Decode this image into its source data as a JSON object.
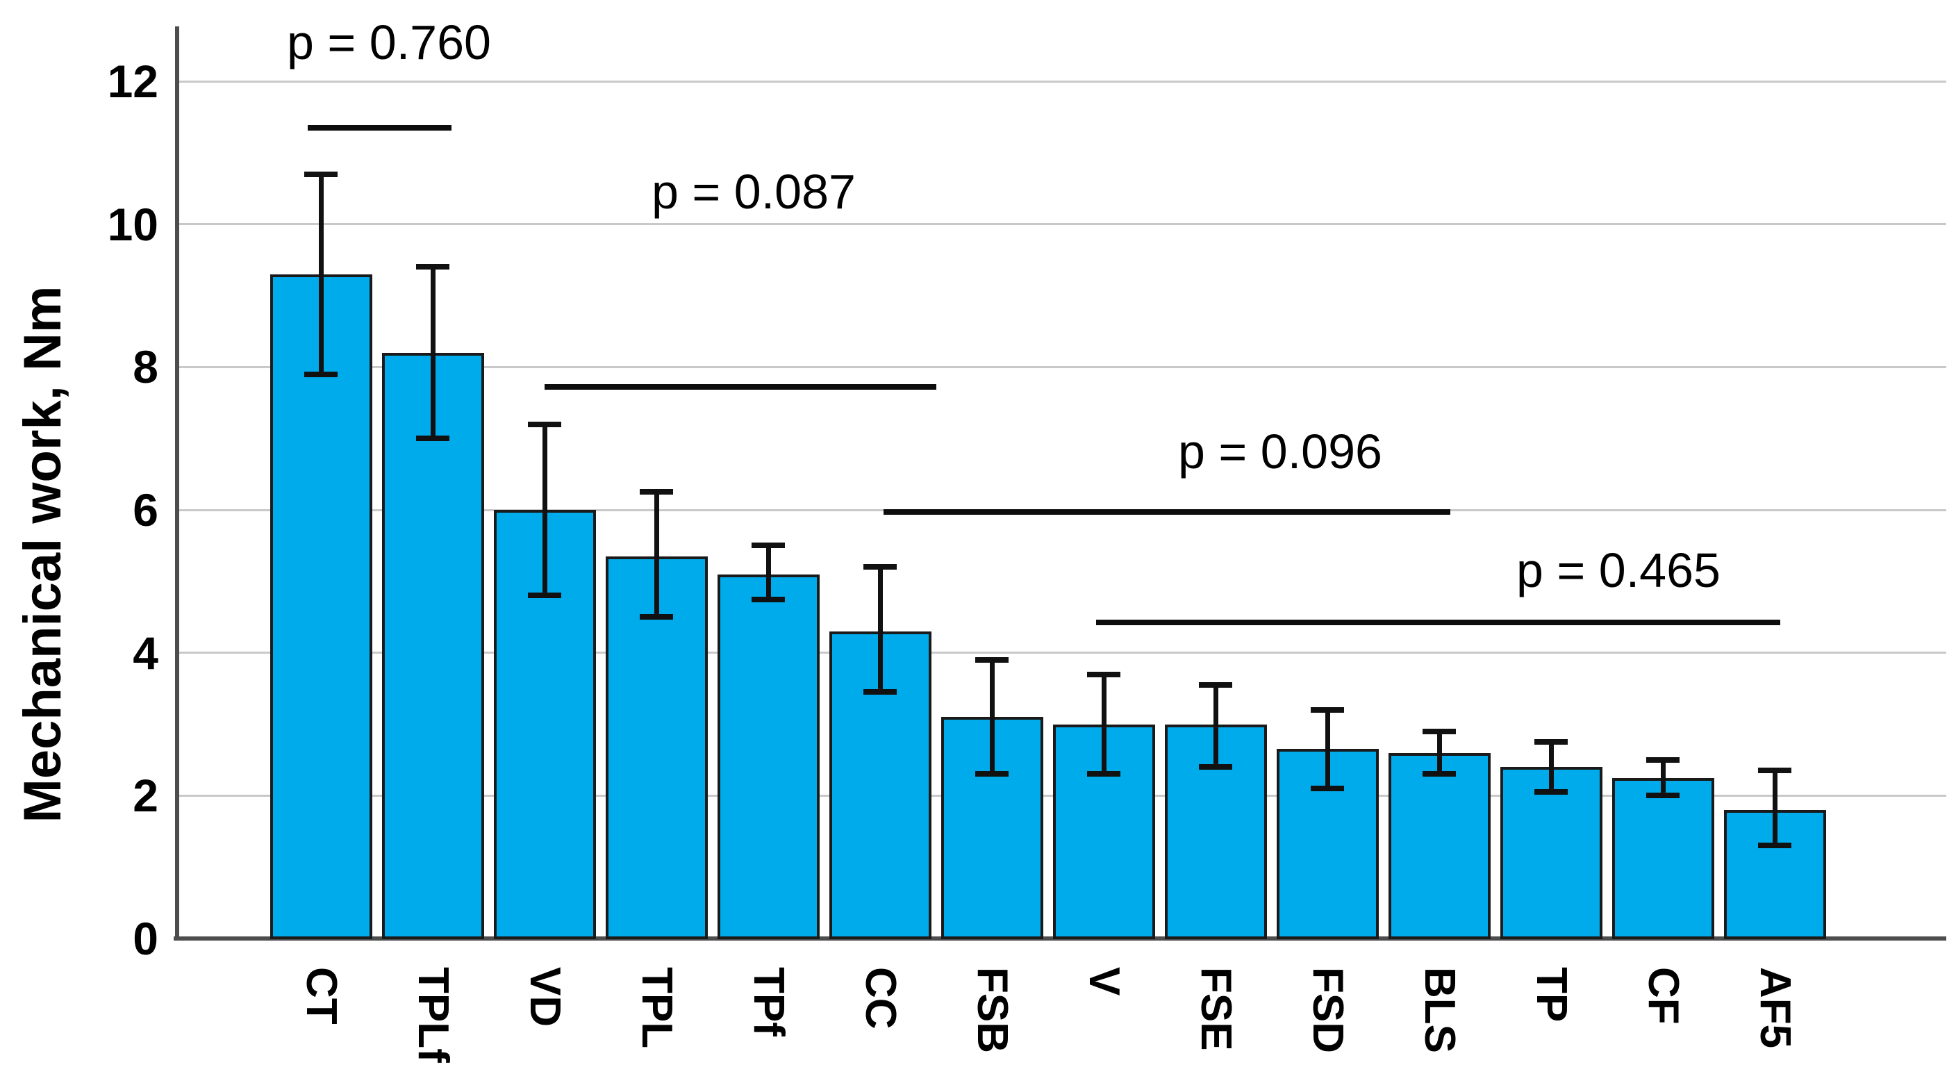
{
  "chart_data": {
    "type": "bar",
    "title": "",
    "xlabel": "",
    "ylabel": "Mechanical work, Nm",
    "ylim": [
      0,
      12.6
    ],
    "yticks": [
      0,
      2,
      4,
      6,
      8,
      10,
      12
    ],
    "grid": true,
    "legend": false,
    "bar_color": "#00abeb",
    "bar_border_color": "#1a1a1a",
    "error_bar_color": "#111111",
    "axis_color": "#4d4d4d",
    "gridline_color": "#c9c9c9",
    "categories": [
      "CT",
      "TPLf",
      "VD",
      "TPL",
      "TPf",
      "CC",
      "FSB",
      "V",
      "FSE",
      "FSD",
      "BLS",
      "TP",
      "CF",
      "AF5"
    ],
    "values": [
      9.3,
      8.2,
      6.0,
      5.35,
      5.1,
      4.3,
      3.1,
      3.0,
      3.0,
      2.65,
      2.6,
      2.4,
      2.25,
      1.8
    ],
    "whisker_low": [
      7.9,
      7.0,
      4.8,
      4.5,
      4.75,
      3.45,
      2.3,
      2.3,
      2.4,
      2.1,
      2.3,
      2.05,
      2.0,
      1.3
    ],
    "whisker_high": [
      10.7,
      9.4,
      7.2,
      6.25,
      5.5,
      5.2,
      3.9,
      3.7,
      3.55,
      3.2,
      2.9,
      2.75,
      2.5,
      2.35
    ],
    "annotations": [
      {
        "label": "p = 0.760",
        "from": "CT",
        "to": "TPLf",
        "line_y": 11.35
      },
      {
        "label": "p = 0.087",
        "from": "VD",
        "to": "CC",
        "line_y": 7.72
      },
      {
        "label": "p = 0.096",
        "from": "CC",
        "to": "BLS",
        "line_y": 5.97
      },
      {
        "label": "p = 0.465",
        "from": "V",
        "to": "AF5",
        "line_y": 4.42
      }
    ]
  }
}
